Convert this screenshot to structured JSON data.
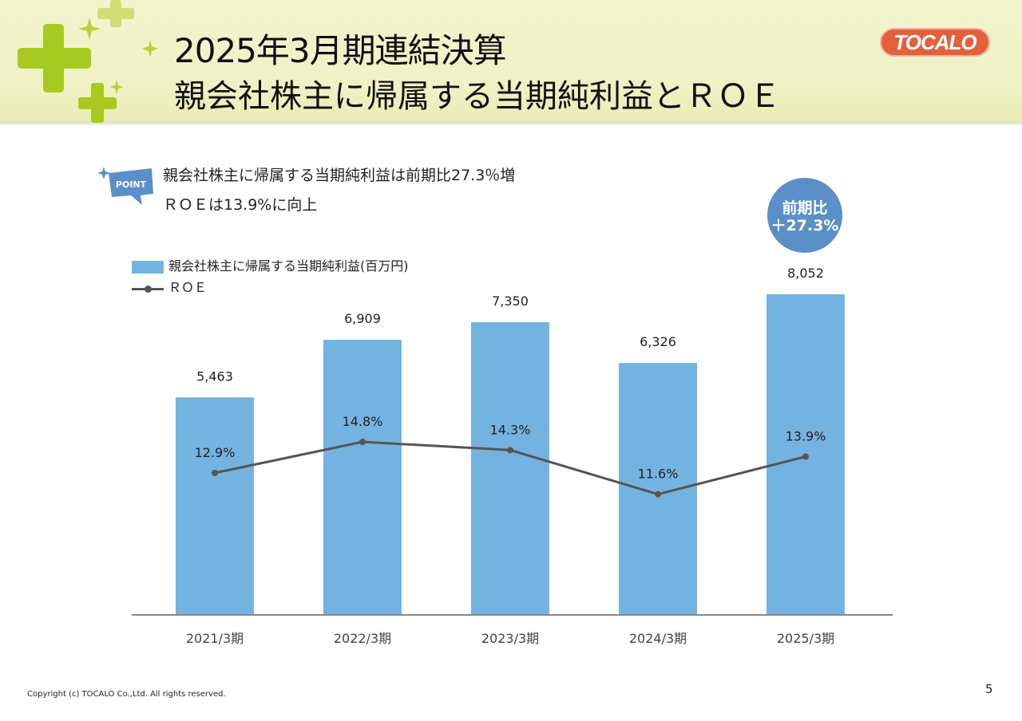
{
  "slide": {
    "title_line1": "2025年3月期連結決算",
    "title_line2": "親会社株主に帰属する当期純利益とＲＯＥ",
    "logo_text": "TOCALO",
    "point_badge": "POINT",
    "point_lines": [
      "親会社株主に帰属する当期純利益は前期比27.3％増",
      "ＲＯＥは13.9%に向上"
    ],
    "callout_line1": "前期比",
    "callout_line2": "＋27.3%",
    "copyright": "Copyright (c) TOCALO Co.,Ltd. All rights reserved.",
    "page_number": "5"
  },
  "colors": {
    "bar": "#74b3e0",
    "line": "#555555",
    "callout": "#5b8fc8",
    "logo": "#e4603c"
  },
  "chart_data": {
    "type": "bar",
    "categories": [
      "2021/3期",
      "2022/3期",
      "2023/3期",
      "2024/3期",
      "2025/3期"
    ],
    "series": [
      {
        "name": "親会社株主に帰属する当期純利益(百万円)",
        "type": "bar",
        "values": [
          5463,
          6909,
          7350,
          6326,
          8052
        ],
        "labels": [
          "5,463",
          "6,909",
          "7,350",
          "6,326",
          "8,052"
        ]
      },
      {
        "name": "ＲＯＥ",
        "type": "line",
        "values": [
          12.9,
          14.8,
          14.3,
          11.6,
          13.9
        ],
        "labels": [
          "12.9%",
          "14.8%",
          "14.3%",
          "11.6%",
          "13.9%"
        ]
      }
    ],
    "grid": false,
    "legend": "top-left"
  }
}
